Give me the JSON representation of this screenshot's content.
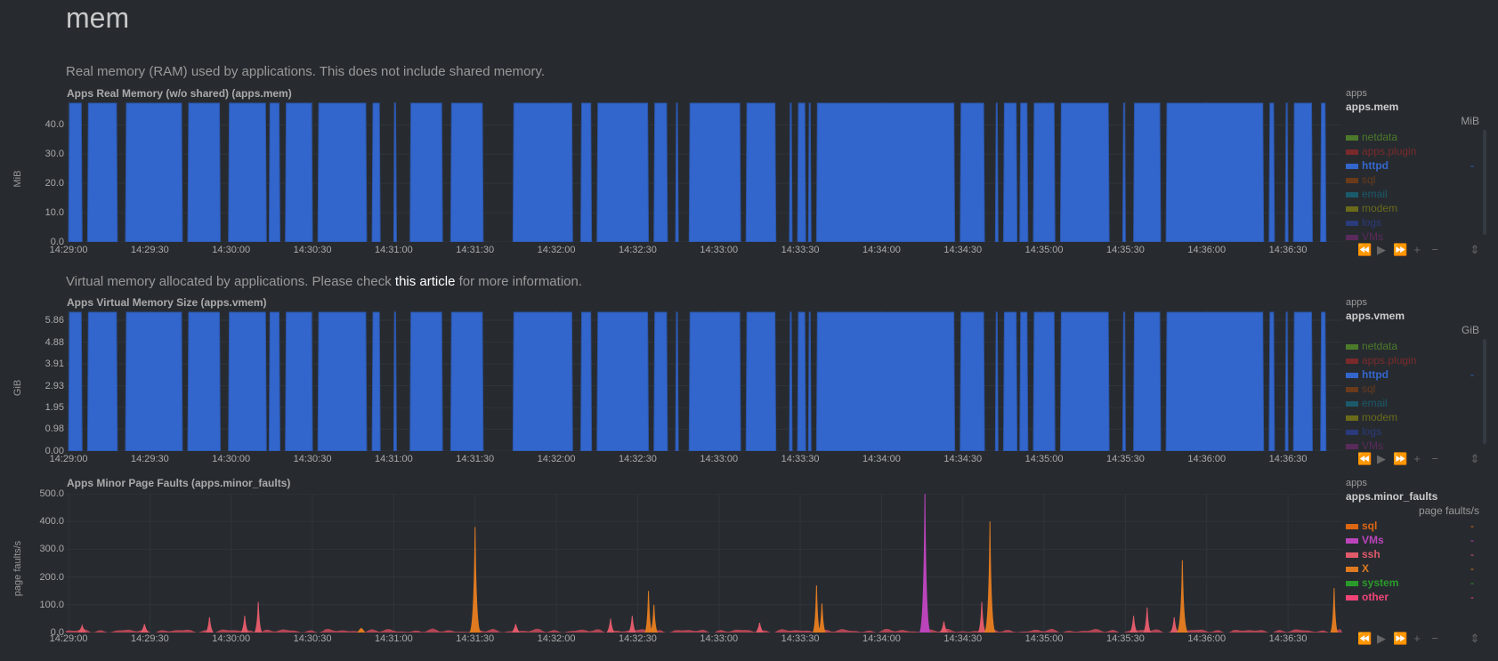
{
  "page": {
    "section_title": "mem",
    "mem_description": "Real memory (RAM) used by applications. This does not include shared memory.",
    "vmem_description_prefix": "Virtual memory allocated by applications. Please check ",
    "vmem_description_link": "this article",
    "vmem_description_suffix": " for more information."
  },
  "colors": {
    "background": "#272b30",
    "httpd": "#3366cc",
    "netdata": "#4c7a2a",
    "apps_plugin": "#7a2a2a",
    "sql": "#dd6611",
    "email": "#1a5a6a",
    "modem": "#6a6a1a",
    "logs": "#2a3a7a",
    "vms": "#6a2a6a",
    "ssh": "#e05a6a",
    "x": "#e07a20",
    "system": "#2a9a2a",
    "other": "#ee4477"
  },
  "toolbar_icons": [
    "rewind-icon",
    "play-icon",
    "fast-forward-icon",
    "zoom-in-icon",
    "zoom-out-icon",
    "resize-icon"
  ],
  "charts": {
    "mem": {
      "title": "Apps Real Memory (w/o shared) (apps.mem)",
      "context": "apps",
      "id": "apps.mem",
      "units": "MiB",
      "legend": [
        {
          "name": "netdata",
          "color": "#4c7a2a",
          "value": ""
        },
        {
          "name": "apps.plugin",
          "color": "#7a2a2a",
          "value": ""
        },
        {
          "name": "httpd",
          "color": "#3366cc",
          "value": "-"
        },
        {
          "name": "sql",
          "color": "#6a3a1a",
          "value": ""
        },
        {
          "name": "email",
          "color": "#1a5a6a",
          "value": ""
        },
        {
          "name": "modem",
          "color": "#6a6a1a",
          "value": ""
        },
        {
          "name": "logs",
          "color": "#2a3a7a",
          "value": ""
        },
        {
          "name": "VMs",
          "color": "#5a2a5a",
          "value": ""
        }
      ]
    },
    "vmem": {
      "title": "Apps Virtual Memory Size (apps.vmem)",
      "context": "apps",
      "id": "apps.vmem",
      "units": "GiB",
      "legend": [
        {
          "name": "netdata",
          "color": "#4c7a2a",
          "value": ""
        },
        {
          "name": "apps.plugin",
          "color": "#7a2a2a",
          "value": ""
        },
        {
          "name": "httpd",
          "color": "#3366cc",
          "value": "-"
        },
        {
          "name": "sql",
          "color": "#6a3a1a",
          "value": ""
        },
        {
          "name": "email",
          "color": "#1a5a6a",
          "value": ""
        },
        {
          "name": "modem",
          "color": "#6a6a1a",
          "value": ""
        },
        {
          "name": "logs",
          "color": "#2a3a7a",
          "value": ""
        },
        {
          "name": "VMs",
          "color": "#5a2a5a",
          "value": ""
        }
      ]
    },
    "faults": {
      "title": "Apps Minor Page Faults (apps.minor_faults)",
      "context": "apps",
      "id": "apps.minor_faults",
      "units": "page faults/s",
      "legend": [
        {
          "name": "sql",
          "color": "#dd6611",
          "value": "-"
        },
        {
          "name": "VMs",
          "color": "#bb44bb",
          "value": "-"
        },
        {
          "name": "ssh",
          "color": "#e05a6a",
          "value": "-"
        },
        {
          "name": "X",
          "color": "#e07a20",
          "value": "-"
        },
        {
          "name": "system",
          "color": "#2a9a2a",
          "value": "-"
        },
        {
          "name": "other",
          "color": "#ee4477",
          "value": "-"
        }
      ]
    }
  },
  "chart_data": [
    {
      "type": "area",
      "title": "Apps Real Memory (w/o shared) (apps.mem)",
      "ylabel": "MiB",
      "ylim": [
        0,
        48
      ],
      "yticks": [
        "0.0",
        "10.0",
        "20.0",
        "30.0",
        "40.0"
      ],
      "ytick_values": [
        0,
        10,
        20,
        30,
        40
      ],
      "x_range": [
        "14:28:59",
        "14:36:50"
      ],
      "xticks": [
        "14:29:00",
        "14:29:30",
        "14:30:00",
        "14:30:30",
        "14:31:00",
        "14:31:30",
        "14:32:00",
        "14:32:30",
        "14:33:00",
        "14:33:30",
        "14:34:00",
        "14:34:30",
        "14:35:00",
        "14:35:30",
        "14:36:00",
        "14:36:30"
      ],
      "series": [
        {
          "name": "httpd",
          "color": "#3366cc",
          "value": 48,
          "segments": [
            [
              "14:29:00",
              "14:29:05"
            ],
            [
              "14:29:07",
              "14:29:18"
            ],
            [
              "14:29:21",
              "14:29:42"
            ],
            [
              "14:29:44",
              "14:29:56"
            ],
            [
              "14:29:59",
              "14:30:13"
            ],
            [
              "14:30:14",
              "14:30:18"
            ],
            [
              "14:30:20",
              "14:30:30"
            ],
            [
              "14:30:32",
              "14:30:50"
            ],
            [
              "14:30:52",
              "14:30:55"
            ],
            [
              "14:31:00",
              "14:31:01"
            ],
            [
              "14:31:06",
              "14:31:18"
            ],
            [
              "14:31:21",
              "14:31:33"
            ],
            [
              "14:31:44",
              "14:32:06"
            ],
            [
              "14:32:09",
              "14:32:13"
            ],
            [
              "14:32:15",
              "14:32:34"
            ],
            [
              "14:32:36",
              "14:32:41"
            ],
            [
              "14:32:44",
              "14:32:45"
            ],
            [
              "14:32:49",
              "14:33:08"
            ],
            [
              "14:33:10",
              "14:33:21"
            ],
            [
              "14:33:26",
              "14:33:27"
            ],
            [
              "14:33:29",
              "14:33:32"
            ],
            [
              "14:33:33",
              "14:33:34"
            ],
            [
              "14:33:36",
              "14:34:27"
            ],
            [
              "14:34:29",
              "14:34:38"
            ],
            [
              "14:34:42",
              "14:34:43"
            ],
            [
              "14:34:45",
              "14:34:50"
            ],
            [
              "14:34:51",
              "14:34:54"
            ],
            [
              "14:34:56",
              "14:35:04"
            ],
            [
              "14:35:06",
              "14:35:24"
            ],
            [
              "14:35:29",
              "14:35:30"
            ],
            [
              "14:35:33",
              "14:35:43"
            ],
            [
              "14:35:45",
              "14:36:21"
            ],
            [
              "14:36:23",
              "14:36:25"
            ],
            [
              "14:36:29",
              "14:36:30"
            ],
            [
              "14:36:32",
              "14:36:39"
            ],
            [
              "14:36:42",
              "14:36:44"
            ]
          ]
        }
      ]
    },
    {
      "type": "area",
      "title": "Apps Virtual Memory Size (apps.vmem)",
      "ylabel": "GiB",
      "ylim": [
        0,
        6.3
      ],
      "yticks": [
        "0.00",
        "0.98",
        "1.95",
        "2.93",
        "3.91",
        "4.88",
        "5.86"
      ],
      "ytick_values": [
        0,
        0.98,
        1.95,
        2.93,
        3.91,
        4.88,
        5.86
      ],
      "x_range": [
        "14:28:59",
        "14:36:50"
      ],
      "xticks": [
        "14:29:00",
        "14:29:30",
        "14:30:00",
        "14:30:30",
        "14:31:00",
        "14:31:30",
        "14:32:00",
        "14:32:30",
        "14:33:00",
        "14:33:30",
        "14:34:00",
        "14:34:30",
        "14:35:00",
        "14:35:30",
        "14:36:00",
        "14:36:30"
      ],
      "series": [
        {
          "name": "httpd",
          "color": "#3366cc",
          "value": 6.3,
          "segments": [
            [
              "14:29:00",
              "14:29:05"
            ],
            [
              "14:29:07",
              "14:29:18"
            ],
            [
              "14:29:21",
              "14:29:42"
            ],
            [
              "14:29:44",
              "14:29:56"
            ],
            [
              "14:29:59",
              "14:30:13"
            ],
            [
              "14:30:14",
              "14:30:18"
            ],
            [
              "14:30:20",
              "14:30:30"
            ],
            [
              "14:30:32",
              "14:30:50"
            ],
            [
              "14:30:52",
              "14:30:55"
            ],
            [
              "14:31:00",
              "14:31:01"
            ],
            [
              "14:31:06",
              "14:31:18"
            ],
            [
              "14:31:21",
              "14:31:33"
            ],
            [
              "14:31:44",
              "14:32:06"
            ],
            [
              "14:32:09",
              "14:32:13"
            ],
            [
              "14:32:15",
              "14:32:34"
            ],
            [
              "14:32:36",
              "14:32:41"
            ],
            [
              "14:32:44",
              "14:32:45"
            ],
            [
              "14:32:49",
              "14:33:08"
            ],
            [
              "14:33:10",
              "14:33:21"
            ],
            [
              "14:33:26",
              "14:33:27"
            ],
            [
              "14:33:29",
              "14:33:32"
            ],
            [
              "14:33:33",
              "14:33:34"
            ],
            [
              "14:33:36",
              "14:34:27"
            ],
            [
              "14:34:29",
              "14:34:38"
            ],
            [
              "14:34:42",
              "14:34:43"
            ],
            [
              "14:34:45",
              "14:34:50"
            ],
            [
              "14:34:51",
              "14:34:54"
            ],
            [
              "14:34:56",
              "14:35:04"
            ],
            [
              "14:35:06",
              "14:35:24"
            ],
            [
              "14:35:29",
              "14:35:30"
            ],
            [
              "14:35:33",
              "14:35:43"
            ],
            [
              "14:35:45",
              "14:36:21"
            ],
            [
              "14:36:23",
              "14:36:25"
            ],
            [
              "14:36:29",
              "14:36:30"
            ],
            [
              "14:36:32",
              "14:36:39"
            ],
            [
              "14:36:42",
              "14:36:44"
            ]
          ]
        }
      ]
    },
    {
      "type": "area",
      "title": "Apps Minor Page Faults (apps.minor_faults)",
      "ylabel": "page faults/s",
      "ylim": [
        0,
        500
      ],
      "yticks": [
        "0.0",
        "100.0",
        "200.0",
        "300.0",
        "400.0",
        "500.0"
      ],
      "ytick_values": [
        0,
        100,
        200,
        300,
        400,
        500
      ],
      "x_range": [
        "14:28:59",
        "14:36:50"
      ],
      "xticks": [
        "14:29:00",
        "14:29:30",
        "14:30:00",
        "14:30:30",
        "14:31:00",
        "14:31:30",
        "14:32:00",
        "14:32:30",
        "14:33:00",
        "14:33:30",
        "14:34:00",
        "14:34:30",
        "14:35:00",
        "14:35:30",
        "14:36:00",
        "14:36:30"
      ],
      "baseline": 10,
      "series": [
        {
          "name": "ssh",
          "color": "#e05a6a",
          "spikes": [
            [
              "14:29:05",
              25
            ],
            [
              "14:29:28",
              30
            ],
            [
              "14:29:52",
              55
            ],
            [
              "14:30:05",
              60
            ],
            [
              "14:30:10",
              110
            ],
            [
              "14:31:45",
              30
            ],
            [
              "14:32:20",
              50
            ],
            [
              "14:32:28",
              60
            ],
            [
              "14:33:15",
              35
            ],
            [
              "14:34:23",
              40
            ],
            [
              "14:34:37",
              110
            ],
            [
              "14:35:33",
              60
            ],
            [
              "14:35:38",
              90
            ],
            [
              "14:35:48",
              55
            ]
          ]
        },
        {
          "name": "X",
          "color": "#e07a20",
          "spikes": [
            [
              "14:30:48",
              15
            ],
            [
              "14:31:30",
              380
            ],
            [
              "14:32:34",
              150
            ],
            [
              "14:32:36",
              100
            ],
            [
              "14:33:36",
              170
            ],
            [
              "14:33:38",
              105
            ],
            [
              "14:34:40",
              400
            ],
            [
              "14:35:51",
              260
            ],
            [
              "14:36:47",
              160
            ]
          ]
        },
        {
          "name": "VMs",
          "color": "#bb44bb",
          "spikes": [
            [
              "14:34:16",
              500
            ]
          ]
        }
      ]
    }
  ]
}
